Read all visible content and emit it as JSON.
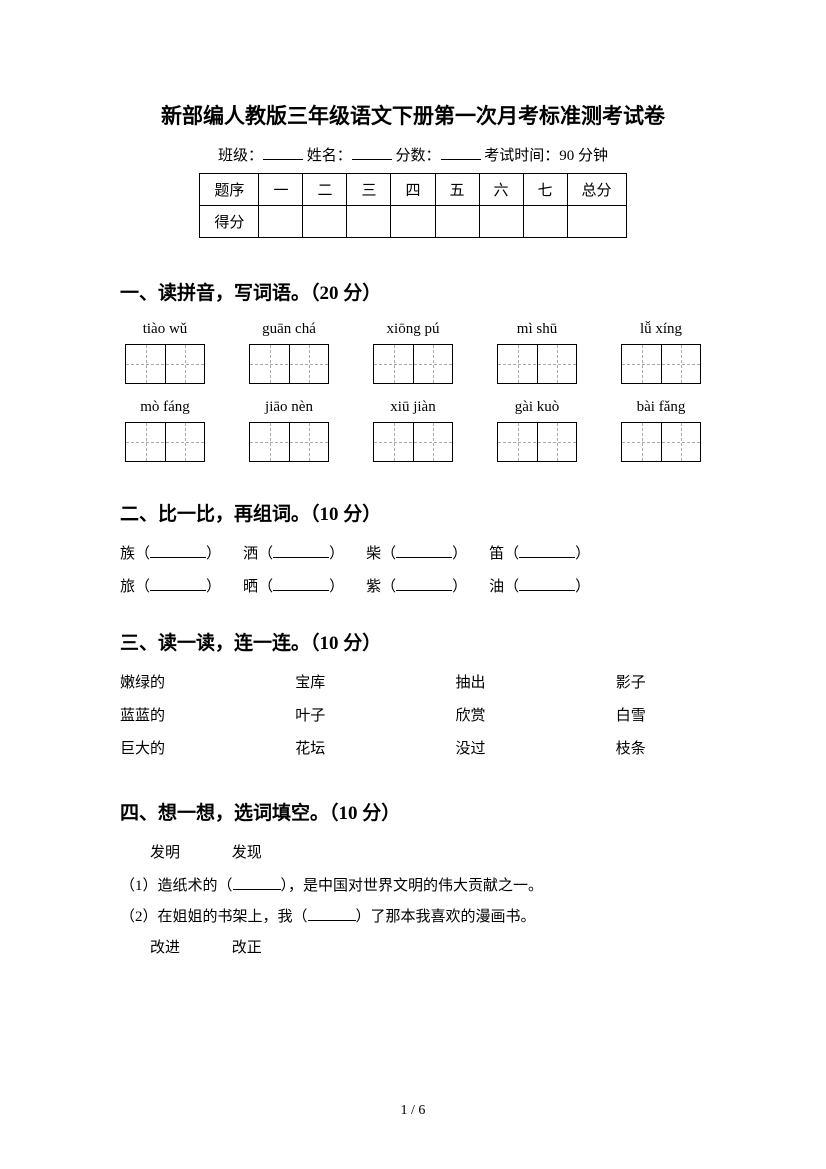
{
  "title": "新部编人教版三年级语文下册第一次月考标准测考试卷",
  "subtitle": {
    "class_label": "班级：",
    "name_label": "姓名：",
    "score_label": "分数：",
    "time_label": "考试时间：90 分钟"
  },
  "score_table": {
    "row1": [
      "题序",
      "一",
      "二",
      "三",
      "四",
      "五",
      "六",
      "七",
      "总分"
    ],
    "row2_first": "得分"
  },
  "q1": {
    "heading": "一、读拼音，写词语。（20 分）",
    "row1": [
      "tiào wǔ",
      "guān chá",
      "xiōng pú",
      "mì shū",
      "lǚ xíng"
    ],
    "row2": [
      "mò fáng",
      "jiāo nèn",
      "xiū jiàn",
      "gài kuò",
      "bài fǎng"
    ]
  },
  "q2": {
    "heading": "二、比一比，再组词。（10 分）",
    "row1": [
      "族",
      "洒",
      "柴",
      "笛"
    ],
    "row2": [
      "旅",
      "晒",
      "紫",
      "油"
    ]
  },
  "q3": {
    "heading": "三、读一读，连一连。（10 分）",
    "rows": [
      [
        "嫩绿的",
        "宝库",
        "抽出",
        "影子"
      ],
      [
        "蓝蓝的",
        "叶子",
        "欣赏",
        "白雪"
      ],
      [
        "巨大的",
        "花坛",
        "没过",
        "枝条"
      ]
    ]
  },
  "q4": {
    "heading": "四、想一想，选词填空。（10 分）",
    "options1": [
      "发明",
      "发现"
    ],
    "line1_pre": "（1）造纸术的（",
    "line1_post": "），是中国对世界文明的伟大贡献之一。",
    "line2_pre": "（2）在姐姐的书架上，我（",
    "line2_post": "）了那本我喜欢的漫画书。",
    "options2": [
      "改进",
      "改正"
    ]
  },
  "footer": "1 / 6",
  "style": {
    "bg": "#ffffff",
    "text": "#000000"
  }
}
